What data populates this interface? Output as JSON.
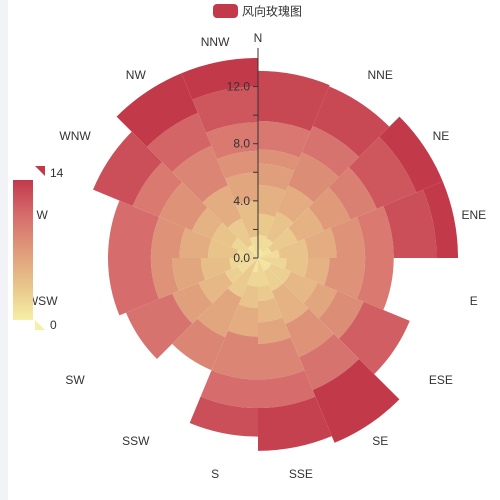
{
  "chart_data": {
    "type": "polar-stacked-bar",
    "title": "",
    "legend": {
      "entries": [
        "风向玫瑰图"
      ],
      "position": "top-center",
      "color": "#c23a4a"
    },
    "directions": [
      "N",
      "NNE",
      "NE",
      "ENE",
      "E",
      "ESE",
      "SE",
      "SSE",
      "S",
      "SSW",
      "SW",
      "WSW",
      "W",
      "WNW",
      "NW",
      "NNW"
    ],
    "radius_axis": {
      "min": 0,
      "max": 14,
      "tick_labels": [
        "0.0",
        "4.0",
        "8.0",
        "12.0"
      ],
      "tick_values": [
        0,
        4,
        8,
        12
      ]
    },
    "visual_map": {
      "min": 0,
      "max": 14,
      "max_label": "14",
      "min_label": "0",
      "colors": [
        "#f6efa6",
        "#e8c48a",
        "#df9a7a",
        "#d66c6c",
        "#c23a4a"
      ]
    },
    "segments": [
      {
        "direction": "N",
        "values": [
          0.1,
          0.5,
          1.0,
          1.5,
          2.0,
          1.5,
          1.0,
          2.0,
          3.5
        ]
      },
      {
        "direction": "NNE",
        "values": [
          0.5,
          1.0,
          2.0,
          2.0,
          2.5,
          2.0,
          3.0
        ]
      },
      {
        "direction": "NE",
        "values": [
          1.0,
          2.0,
          2.0,
          2.0,
          2.0,
          3.0,
          3.0
        ]
      },
      {
        "direction": "ENE",
        "values": [
          1.5,
          2.0,
          2.0,
          2.0,
          2.0,
          3.0,
          3.0
        ]
      },
      {
        "direction": "E",
        "values": [
          2.0,
          1.5,
          1.5,
          2.5,
          2.0
        ]
      },
      {
        "direction": "ESE",
        "values": [
          1.0,
          1.5,
          2.0,
          1.5,
          2.0,
          3.5
        ]
      },
      {
        "direction": "SE",
        "values": [
          1.0,
          1.5,
          2.5,
          2.5,
          2.5,
          4.0
        ]
      },
      {
        "direction": "SSE",
        "values": [
          2.0,
          1.0,
          1.5,
          1.5,
          2.5,
          2.0,
          3.0
        ]
      },
      {
        "direction": "S",
        "values": [
          1.0,
          1.0,
          1.5,
          2.0,
          3.0,
          2.0,
          2.0
        ]
      },
      {
        "direction": "SSW",
        "values": [
          3.0,
          3.0,
          2.5
        ]
      },
      {
        "direction": "SW",
        "values": [
          1.5,
          1.0,
          2.0,
          2.0,
          3.5
        ]
      },
      {
        "direction": "WSW",
        "values": [
          2.0,
          2.0,
          2.0,
          1.5,
          3.0
        ]
      },
      {
        "direction": "W",
        "values": [
          1.5,
          2.0,
          2.0,
          2.0,
          3.0
        ]
      },
      {
        "direction": "WNW",
        "values": [
          2.0,
          1.5,
          1.5,
          2.5,
          2.0,
          3.0
        ]
      },
      {
        "direction": "NW",
        "values": [
          1.0,
          2.0,
          2.5,
          3.0,
          2.5,
          3.0
        ]
      },
      {
        "direction": "NNW",
        "values": [
          1.5,
          2.5,
          2.0,
          1.5,
          2.0,
          2.5,
          2.0
        ]
      }
    ]
  }
}
